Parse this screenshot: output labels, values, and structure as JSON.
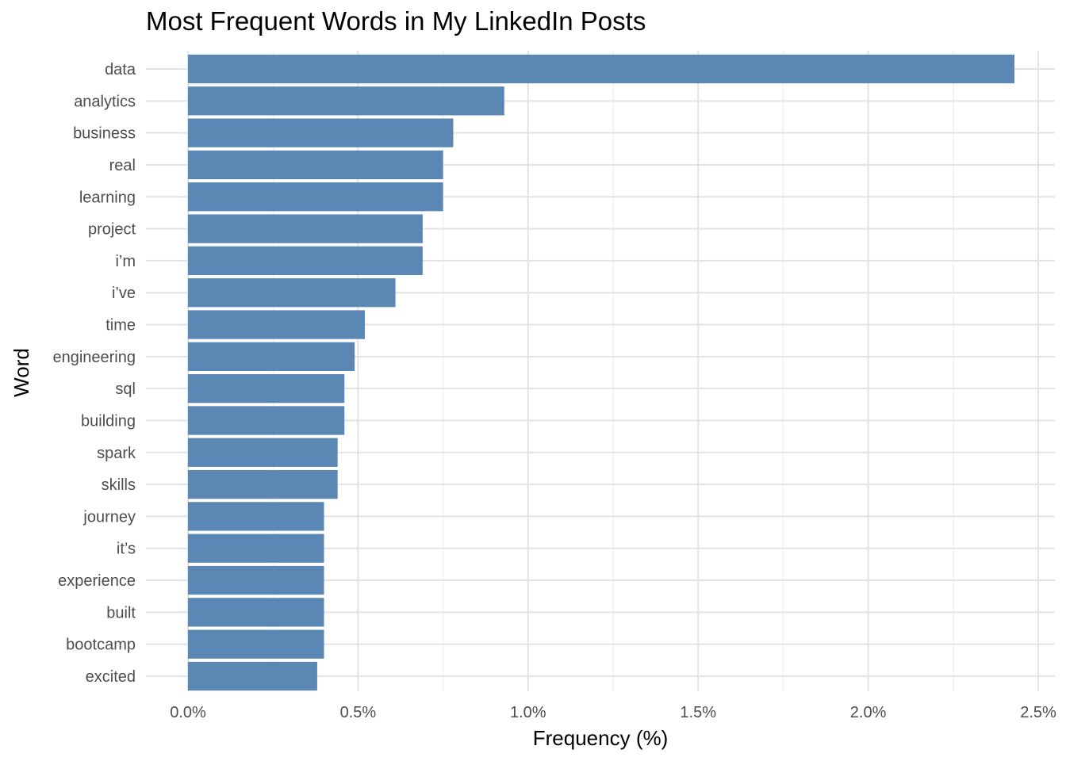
{
  "chart_data": {
    "type": "bar",
    "orientation": "horizontal",
    "title": "Most Frequent Words in My LinkedIn Posts",
    "xlabel": "Frequency (%)",
    "ylabel": "Word",
    "xlim": [
      0,
      2.5
    ],
    "x_ticks": [
      "0.0%",
      "0.5%",
      "1.0%",
      "1.5%",
      "2.0%",
      "2.5%"
    ],
    "grid": true,
    "bar_color": "#5b87b5",
    "categories": [
      "data",
      "analytics",
      "business",
      "real",
      "learning",
      "project",
      "i’m",
      "i’ve",
      "time",
      "engineering",
      "sql",
      "building",
      "spark",
      "skills",
      "journey",
      "it’s",
      "experience",
      "built",
      "bootcamp",
      "excited"
    ],
    "values": [
      2.43,
      0.93,
      0.78,
      0.75,
      0.75,
      0.69,
      0.69,
      0.61,
      0.52,
      0.49,
      0.46,
      0.46,
      0.44,
      0.44,
      0.4,
      0.4,
      0.4,
      0.4,
      0.4,
      0.38
    ]
  }
}
